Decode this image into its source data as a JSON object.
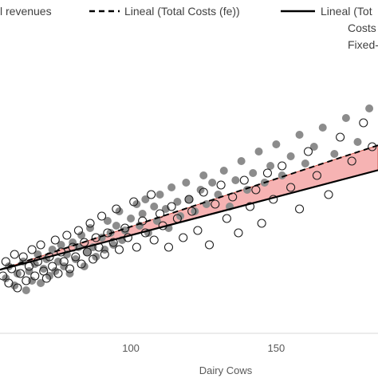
{
  "chart_data": {
    "type": "scatter",
    "title": "",
    "xlabel": "Dairy Cows",
    "ylabel": "",
    "xlim": [
      55,
      185
    ],
    "ylim": [
      0,
      1
    ],
    "x_ticks": [
      100,
      150
    ],
    "grid": false,
    "legend_position": "top",
    "legend": {
      "revenues_label": "l revenues",
      "dashed_label": "Lineal (Total Costs (fe))",
      "solid_label": "Lineal (Tot",
      "note_line1": "Costs",
      "note_line2": "Fixed-"
    },
    "colors": {
      "filled_points": "#8c8c8c",
      "hollow_stroke": "#1f1f1f",
      "band_fill": "#f4a6a6",
      "band_edge": "#c0392b",
      "line": "#000000"
    },
    "lines": {
      "dashed": {
        "x": [
          55,
          185
        ],
        "y": [
          0.206,
          0.726
        ]
      },
      "solid": {
        "x": [
          55,
          185
        ],
        "y": [
          0.206,
          0.622
        ]
      }
    },
    "series": [
      {
        "name": "",
        "marker": "filled",
        "points": [
          [
            57,
            0.17
          ],
          [
            58,
            0.22
          ],
          [
            60,
            0.14
          ],
          [
            61,
            0.19
          ],
          [
            63,
            0.24
          ],
          [
            64,
            0.12
          ],
          [
            65,
            0.2
          ],
          [
            66,
            0.16
          ],
          [
            67,
            0.23
          ],
          [
            68,
            0.27
          ],
          [
            69,
            0.15
          ],
          [
            70,
            0.21
          ],
          [
            71,
            0.25
          ],
          [
            72,
            0.18
          ],
          [
            73,
            0.29
          ],
          [
            74,
            0.2
          ],
          [
            75,
            0.24
          ],
          [
            76,
            0.31
          ],
          [
            77,
            0.22
          ],
          [
            78,
            0.27
          ],
          [
            79,
            0.19
          ],
          [
            80,
            0.32
          ],
          [
            81,
            0.25
          ],
          [
            82,
            0.3
          ],
          [
            83,
            0.35
          ],
          [
            84,
            0.22
          ],
          [
            85,
            0.28
          ],
          [
            86,
            0.38
          ],
          [
            87,
            0.3
          ],
          [
            88,
            0.26
          ],
          [
            90,
            0.34
          ],
          [
            91,
            0.29
          ],
          [
            92,
            0.41
          ],
          [
            93,
            0.36
          ],
          [
            94,
            0.31
          ],
          [
            95,
            0.39
          ],
          [
            96,
            0.45
          ],
          [
            97,
            0.33
          ],
          [
            98,
            0.37
          ],
          [
            100,
            0.42
          ],
          [
            102,
            0.48
          ],
          [
            103,
            0.39
          ],
          [
            104,
            0.44
          ],
          [
            105,
            0.5
          ],
          [
            106,
            0.36
          ],
          [
            108,
            0.47
          ],
          [
            109,
            0.41
          ],
          [
            110,
            0.52
          ],
          [
            112,
            0.46
          ],
          [
            113,
            0.38
          ],
          [
            114,
            0.55
          ],
          [
            116,
            0.49
          ],
          [
            117,
            0.43
          ],
          [
            119,
            0.57
          ],
          [
            120,
            0.5
          ],
          [
            122,
            0.45
          ],
          [
            124,
            0.54
          ],
          [
            125,
            0.6
          ],
          [
            126,
            0.48
          ],
          [
            128,
            0.57
          ],
          [
            130,
            0.52
          ],
          [
            132,
            0.62
          ],
          [
            134,
            0.47
          ],
          [
            136,
            0.58
          ],
          [
            138,
            0.66
          ],
          [
            140,
            0.54
          ],
          [
            142,
            0.61
          ],
          [
            144,
            0.7
          ],
          [
            146,
            0.57
          ],
          [
            148,
            0.64
          ],
          [
            150,
            0.73
          ],
          [
            152,
            0.6
          ],
          [
            155,
            0.68
          ],
          [
            158,
            0.77
          ],
          [
            160,
            0.65
          ],
          [
            163,
            0.72
          ],
          [
            166,
            0.8
          ],
          [
            170,
            0.69
          ],
          [
            174,
            0.84
          ],
          [
            178,
            0.74
          ],
          [
            182,
            0.88
          ]
        ]
      },
      {
        "name": "",
        "marker": "hollow",
        "points": [
          [
            56,
            0.18
          ],
          [
            57,
            0.24
          ],
          [
            58,
            0.15
          ],
          [
            59,
            0.21
          ],
          [
            60,
            0.27
          ],
          [
            61,
            0.13
          ],
          [
            62,
            0.19
          ],
          [
            63,
            0.26
          ],
          [
            64,
            0.16
          ],
          [
            65,
            0.22
          ],
          [
            66,
            0.29
          ],
          [
            67,
            0.18
          ],
          [
            68,
            0.24
          ],
          [
            69,
            0.31
          ],
          [
            70,
            0.2
          ],
          [
            71,
            0.17
          ],
          [
            72,
            0.26
          ],
          [
            73,
            0.22
          ],
          [
            74,
            0.33
          ],
          [
            75,
            0.19
          ],
          [
            76,
            0.28
          ],
          [
            77,
            0.24
          ],
          [
            78,
            0.35
          ],
          [
            79,
            0.21
          ],
          [
            80,
            0.3
          ],
          [
            81,
            0.26
          ],
          [
            82,
            0.37
          ],
          [
            83,
            0.23
          ],
          [
            84,
            0.32
          ],
          [
            85,
            0.28
          ],
          [
            86,
            0.4
          ],
          [
            87,
            0.25
          ],
          [
            88,
            0.34
          ],
          [
            89,
            0.3
          ],
          [
            90,
            0.43
          ],
          [
            91,
            0.27
          ],
          [
            92,
            0.36
          ],
          [
            94,
            0.32
          ],
          [
            95,
            0.46
          ],
          [
            96,
            0.29
          ],
          [
            98,
            0.38
          ],
          [
            99,
            0.34
          ],
          [
            101,
            0.49
          ],
          [
            102,
            0.3
          ],
          [
            104,
            0.41
          ],
          [
            105,
            0.36
          ],
          [
            107,
            0.52
          ],
          [
            108,
            0.33
          ],
          [
            110,
            0.44
          ],
          [
            111,
            0.39
          ],
          [
            113,
            0.3
          ],
          [
            114,
            0.47
          ],
          [
            116,
            0.42
          ],
          [
            118,
            0.34
          ],
          [
            120,
            0.5
          ],
          [
            121,
            0.45
          ],
          [
            123,
            0.37
          ],
          [
            125,
            0.53
          ],
          [
            127,
            0.31
          ],
          [
            129,
            0.48
          ],
          [
            131,
            0.56
          ],
          [
            133,
            0.42
          ],
          [
            135,
            0.51
          ],
          [
            137,
            0.36
          ],
          [
            139,
            0.58
          ],
          [
            141,
            0.47
          ],
          [
            143,
            0.54
          ],
          [
            145,
            0.4
          ],
          [
            147,
            0.61
          ],
          [
            149,
            0.5
          ],
          [
            152,
            0.64
          ],
          [
            155,
            0.55
          ],
          [
            158,
            0.46
          ],
          [
            161,
            0.7
          ],
          [
            164,
            0.6
          ],
          [
            168,
            0.52
          ],
          [
            172,
            0.76
          ],
          [
            176,
            0.66
          ],
          [
            180,
            0.82
          ],
          [
            183,
            0.72
          ]
        ]
      }
    ]
  }
}
